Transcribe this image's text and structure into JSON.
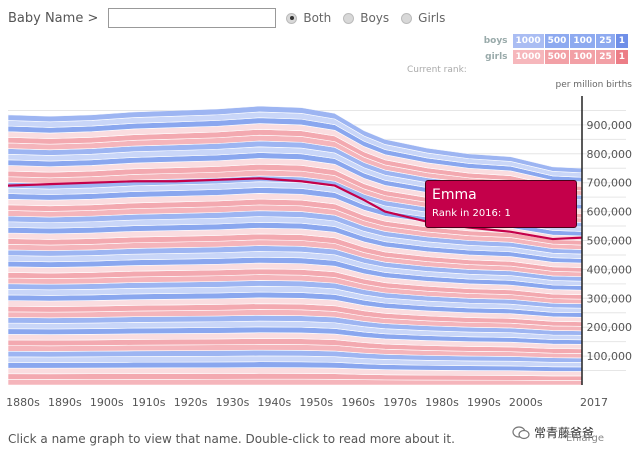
{
  "controls": {
    "name_label": "Baby Name >",
    "name_value": "",
    "radios": [
      {
        "label": "Both",
        "checked": true
      },
      {
        "label": "Boys",
        "checked": false
      },
      {
        "label": "Girls",
        "checked": false
      }
    ]
  },
  "legend": {
    "boys_label": "boys",
    "girls_label": "girls",
    "ranks": [
      "1000",
      "500",
      "100",
      "25",
      "1"
    ],
    "current_rank_label": "Current rank:",
    "colors": {
      "boys": "#8eaaf0",
      "girls": "#f2a0a6"
    }
  },
  "chart_data": {
    "type": "area",
    "unit_label": "per million births",
    "x_tick_labels": [
      "1880s",
      "1890s",
      "1900s",
      "1910s",
      "1920s",
      "1930s",
      "1940s",
      "1950s",
      "1960s",
      "1970s",
      "1980s",
      "1990s",
      "2000s",
      "2017"
    ],
    "y_tick_labels": [
      "100,000",
      "200,000",
      "300,000",
      "400,000",
      "500,000",
      "600,000",
      "700,000",
      "800,000",
      "900,000"
    ],
    "ylim": [
      0,
      1000000
    ],
    "xlim": [
      1880,
      2017
    ],
    "total": {
      "x": [
        1880,
        1890,
        1900,
        1910,
        1920,
        1930,
        1940,
        1950,
        1958,
        1965,
        1970,
        1980,
        1990,
        2000,
        2010,
        2017
      ],
      "y": [
        935000,
        930000,
        935000,
        945000,
        950000,
        955000,
        965000,
        960000,
        940000,
        880000,
        850000,
        820000,
        800000,
        790000,
        755000,
        750000
      ]
    },
    "highlight": {
      "name": "Emma",
      "rank_text": "Rank in 2016: 1",
      "color": "#c4004a",
      "x": [
        1880,
        1890,
        1900,
        1910,
        1920,
        1930,
        1940,
        1950,
        1958,
        1965,
        1970,
        1980,
        1990,
        2000,
        2010,
        2017
      ],
      "y": [
        690000,
        695000,
        700000,
        705000,
        705000,
        710000,
        715000,
        705000,
        690000,
        640000,
        600000,
        565000,
        545000,
        530000,
        505000,
        510000
      ]
    }
  },
  "footer_text": "Click a name graph to view that name. Double-click to read more about it.",
  "watermark_text": "常青藤爸爸",
  "enlarge_label": "Enlarge"
}
